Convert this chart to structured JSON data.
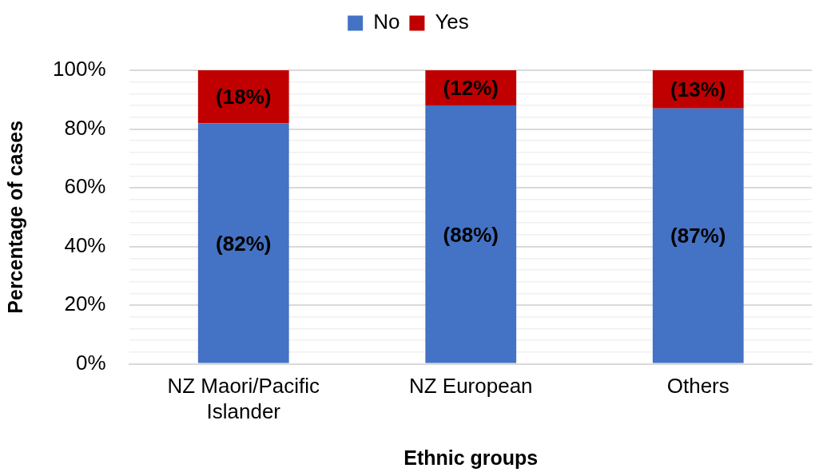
{
  "chart_data": {
    "type": "bar",
    "stacked": true,
    "xlabel": "Ethnic groups",
    "ylabel": "Percentage of cases",
    "categories": [
      "NZ Maori/Pacific Islander",
      "NZ European",
      "Others"
    ],
    "series": [
      {
        "name": "No",
        "color": "#4472c4",
        "values": [
          82,
          88,
          87
        ],
        "value_labels": [
          "(82%)",
          "(88%)",
          "(87%)"
        ]
      },
      {
        "name": "Yes",
        "color": "#c00000",
        "values": [
          18,
          12,
          13
        ],
        "value_labels": [
          "(18%)",
          "(12%)",
          "(13%)"
        ]
      }
    ],
    "ylim": [
      0,
      100
    ],
    "yticks": [
      {
        "value": 0,
        "label": "0%"
      },
      {
        "value": 4,
        "label": null
      },
      {
        "value": 8,
        "label": null
      },
      {
        "value": 12,
        "label": null
      },
      {
        "value": 16,
        "label": null
      },
      {
        "value": 20,
        "label": "20%"
      },
      {
        "value": 24,
        "label": null
      },
      {
        "value": 28,
        "label": null
      },
      {
        "value": 32,
        "label": null
      },
      {
        "value": 36,
        "label": null
      },
      {
        "value": 40,
        "label": "40%"
      },
      {
        "value": 44,
        "label": null
      },
      {
        "value": 48,
        "label": null
      },
      {
        "value": 52,
        "label": null
      },
      {
        "value": 56,
        "label": null
      },
      {
        "value": 60,
        "label": "60%"
      },
      {
        "value": 64,
        "label": null
      },
      {
        "value": 68,
        "label": null
      },
      {
        "value": 72,
        "label": null
      },
      {
        "value": 76,
        "label": null
      },
      {
        "value": 80,
        "label": "80%"
      },
      {
        "value": 84,
        "label": null
      },
      {
        "value": 88,
        "label": null
      },
      {
        "value": 92,
        "label": null
      },
      {
        "value": 96,
        "label": null
      },
      {
        "value": 100,
        "label": "100%"
      }
    ],
    "grid": "y",
    "legend": "top"
  }
}
